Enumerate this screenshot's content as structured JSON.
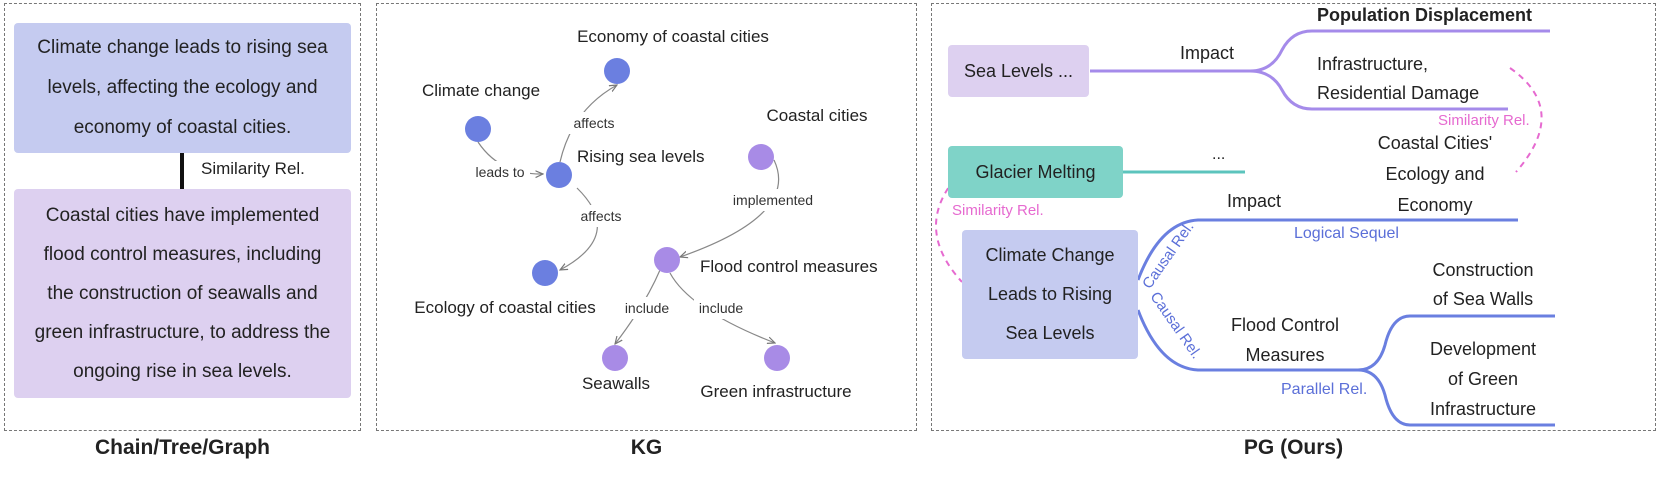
{
  "colors": {
    "blue_box": "#c5cbf0",
    "purple_box": "#ddd0f0",
    "teal_box": "#7fd3c8",
    "blue_node": "#6b7fe0",
    "purple_node": "#a88be6",
    "teal_line": "#5cc4bd",
    "purple_line": "#a58bea",
    "blue_line": "#6a7fe0",
    "pink_dash": "#e66ad0",
    "blue_text": "#5b6fd8"
  },
  "chain": {
    "caption": "Chain/Tree/Graph",
    "box1_lines": [
      "Climate change leads to rising sea",
      "levels, affecting the ecology and",
      "economy of coastal cities."
    ],
    "rel_label": "Similarity Rel.",
    "box2_lines": [
      "Coastal cities have implemented",
      "flood control measures, including",
      "the construction of seawalls and",
      "green infrastructure, to address the",
      "ongoing rise in sea levels."
    ]
  },
  "kg": {
    "caption": "KG",
    "nodes": {
      "climate_change": "Climate change",
      "rising_sea_levels": "Rising sea levels",
      "economy": "Economy of coastal cities",
      "ecology": "Ecology of coastal cities",
      "coastal_cities": "Coastal cities",
      "flood_control": "Flood control measures",
      "seawalls": "Seawalls",
      "green_infra": "Green infrastructure"
    },
    "edges": {
      "leads_to": "leads to",
      "affects_up": "affects",
      "affects_down": "affects",
      "implemented": "implemented",
      "include_left": "include",
      "include_right": "include"
    }
  },
  "pg": {
    "caption": "PG (Ours)",
    "sea_levels": "Sea Levels ...",
    "impact_top": "Impact",
    "pop_displacement": "Population Displacement",
    "infra_lines": [
      "Infrastructure,",
      "Residential Damage"
    ],
    "similarity_right": "Similarity Rel.",
    "glacier": "Glacier Melting",
    "ellipsis": "...",
    "coastal_lines": [
      "Coastal Cities'",
      "Ecology and",
      "Economy"
    ],
    "similarity_left": "Similarity Rel.",
    "impact_mid": "Impact",
    "logical_sequel": "Logical Sequel",
    "climate_lines": [
      "Climate Change",
      "Leads to Rising",
      "Sea Levels"
    ],
    "causal_1": "Causal Rel.",
    "causal_2": "Causal Rel.",
    "construction_lines": [
      "Construction",
      "of Sea Walls"
    ],
    "flood_lines": [
      "Flood Control",
      "Measures"
    ],
    "development_lines": [
      "Development",
      "of Green",
      "Infrastructure"
    ],
    "parallel": "Parallel Rel."
  }
}
